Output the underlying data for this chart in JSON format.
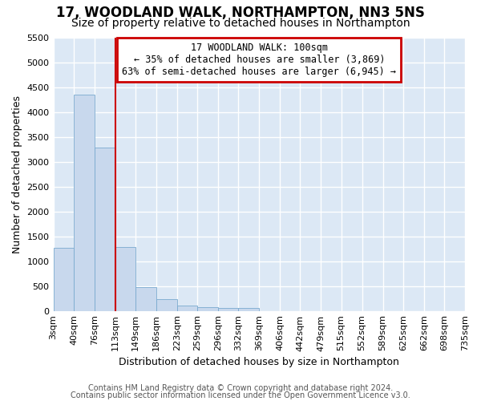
{
  "title": "17, WOODLAND WALK, NORTHAMPTON, NN3 5NS",
  "subtitle": "Size of property relative to detached houses in Northampton",
  "xlabel": "Distribution of detached houses by size in Northampton",
  "ylabel": "Number of detached properties",
  "bar_color": "#c8d8ed",
  "bar_edge_color": "#7aaacf",
  "bg_color": "#dce8f5",
  "grid_color": "#ffffff",
  "annotation_text": "17 WOODLAND WALK: 100sqm\n← 35% of detached houses are smaller (3,869)\n63% of semi-detached houses are larger (6,945) →",
  "annotation_box_color": "#cc0000",
  "red_line_x": 113,
  "red_line_color": "#cc0000",
  "footer_text1": "Contains HM Land Registry data © Crown copyright and database right 2024.",
  "footer_text2": "Contains public sector information licensed under the Open Government Licence v3.0.",
  "bin_edges": [
    3,
    40,
    76,
    113,
    149,
    186,
    223,
    259,
    296,
    332,
    369,
    406,
    442,
    479,
    515,
    552,
    589,
    625,
    662,
    698,
    735
  ],
  "bar_heights": [
    1270,
    4350,
    3280,
    1280,
    480,
    240,
    100,
    70,
    60,
    50,
    0,
    0,
    0,
    0,
    0,
    0,
    0,
    0,
    0,
    0
  ],
  "ylim": [
    0,
    5500
  ],
  "yticks": [
    0,
    500,
    1000,
    1500,
    2000,
    2500,
    3000,
    3500,
    4000,
    4500,
    5000,
    5500
  ],
  "title_fontsize": 12,
  "subtitle_fontsize": 10,
  "tick_fontsize": 8,
  "label_fontsize": 9,
  "footer_fontsize": 7
}
